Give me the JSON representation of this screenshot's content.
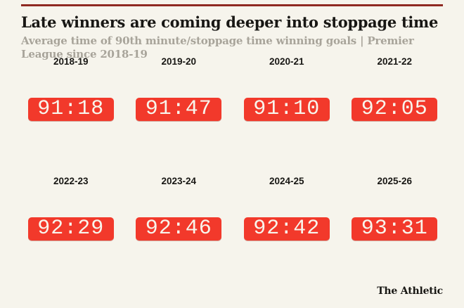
{
  "colors": {
    "background": "#f6f4ec",
    "top_rule": "#8f2a22",
    "clock_background": "#f2392b",
    "clock_text": "#f8f5ec",
    "title_text": "#181714",
    "subtitle_text": "#a8a49a"
  },
  "header": {
    "title": "Late winners are coming deeper into stoppage time",
    "subtitle": "Average time of 90th minute/stoppage time winning goals | Premier League since 2018-19"
  },
  "rows": [
    {
      "seasons": [
        {
          "label": "2018-19",
          "time": "91:18"
        },
        {
          "label": "2019-20",
          "time": "91:47"
        },
        {
          "label": "2020-21",
          "time": "91:10"
        },
        {
          "label": "2021-22",
          "time": "92:05"
        }
      ]
    },
    {
      "seasons": [
        {
          "label": "2022-23",
          "time": "92:29"
        },
        {
          "label": "2023-24",
          "time": "92:46"
        },
        {
          "label": "2024-25",
          "time": "92:42"
        },
        {
          "label": "2025-26",
          "time": "93:31"
        }
      ]
    }
  ],
  "footer": {
    "brand": "The Athletic"
  },
  "chart_data": {
    "type": "table",
    "title": "Late winners are coming deeper into stoppage time",
    "subtitle": "Average time of 90th minute/stoppage time winning goals | Premier League since 2018-19",
    "categories": [
      "2018-19",
      "2019-20",
      "2020-21",
      "2021-22",
      "2022-23",
      "2023-24",
      "2024-25",
      "2025-26"
    ],
    "values": [
      "91:18",
      "91:47",
      "91:10",
      "92:05",
      "92:29",
      "92:46",
      "92:42",
      "93:31"
    ],
    "values_seconds": [
      5478,
      5507,
      5470,
      5525,
      5549,
      5566,
      5562,
      5611
    ],
    "unit": "match minute (mm:ss)",
    "layout": "2 rows x 4 columns of red digital-clock displays",
    "source_brand": "The Athletic"
  }
}
